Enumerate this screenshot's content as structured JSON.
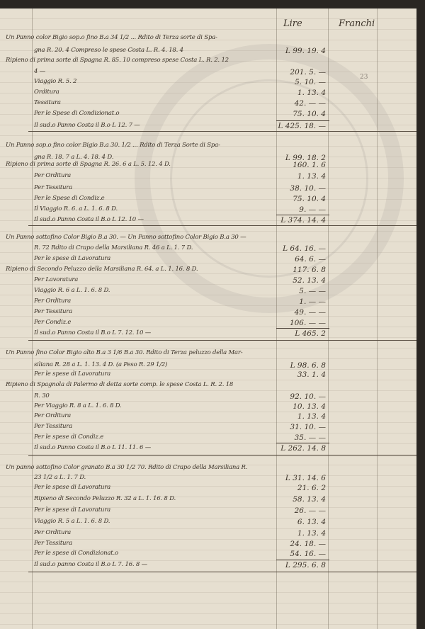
{
  "header": {
    "lire": "Lire",
    "franchi": "Franchi",
    "page_number": "23"
  },
  "sections": [
    {
      "lines": [
        {
          "text": "Un Panno color Bigio sop.o fino B.a 34 1/2 ... Rdito di Terza sorte di Spa-",
          "amount": ""
        },
        {
          "text": "gna R. 20. 4 Compreso le spese Costa L. R. 4. 18. 4",
          "amount": "L 99. 19. 4"
        },
        {
          "text": "Ripieno di prima sorte di Spagna R. 85. 10 compreso spese Costa L. R. 2. 12",
          "amount": ""
        },
        {
          "text": "4 —",
          "amount": "201. 5. —"
        },
        {
          "text": "Viaggio R. 5. 2",
          "amount": "5. 10. —"
        },
        {
          "text": "Orditura",
          "amount": "1. 13. 4"
        },
        {
          "text": "Tessitura",
          "amount": "42. — —"
        },
        {
          "text": "Per le Spese di Condizionat.o",
          "amount": "75. 10. 4"
        },
        {
          "text": "Il sud.o Panno Costa il B.o  L 12. 7 —",
          "amount": "L 425. 18. —"
        }
      ]
    },
    {
      "lines": [
        {
          "text": "Un Panno sop.o fino color Bigio B.a 30. 1/2 ... Rdito di Terza Sorte di Spa-",
          "amount": ""
        },
        {
          "text": "gna R. 18. 7 a L. 4. 18. 4 D.",
          "amount": "L 99. 18. 2"
        },
        {
          "text": "Ripieno di prima sorte di Spagna R. 26. 6 a L. 5. 12. 4 D.",
          "amount": "160. 1. 6"
        },
        {
          "text": "Per Orditura",
          "amount": "1. 13. 4"
        },
        {
          "text": "Per Tessitura",
          "amount": "38. 10. —"
        },
        {
          "text": "Per le Spese di Condiz.e",
          "amount": "75. 10. 4"
        },
        {
          "text": "Il Viaggio R. 6. a L. 1. 6. 8 D.",
          "amount": "9. — —"
        },
        {
          "text": "Il sud.o Panno Costa il B.o  L 12. 10 —",
          "amount": "L 374. 14. 4"
        }
      ]
    },
    {
      "lines": [
        {
          "text": "Un Panno sottofino Color Bigio B.a 30. — Un Panno sottofino Color Bigio B.a 30 —",
          "amount": ""
        },
        {
          "text": "R. 72 Rdito di Crapo della Marsiliana R. 46 a L. 1. 7 D.",
          "amount": "L 64. 16. —"
        },
        {
          "text": "Per le spese di Lavoratura",
          "amount": "64. 6. —"
        },
        {
          "text": "Ripieno di Secondo Peluzzo della Marsiliana R. 64. a L. 1. 16. 8 D.",
          "amount": "117. 6. 8"
        },
        {
          "text": "Per Lavoratura",
          "amount": "52. 13. 4"
        },
        {
          "text": "Viaggio R. 6 a L. 1. 6. 8 D.",
          "amount": "5. — —"
        },
        {
          "text": "Per Orditura",
          "amount": "1. — —"
        },
        {
          "text": "Per Tessitura",
          "amount": "49. — —"
        },
        {
          "text": "Per Condiz.e",
          "amount": "106. — —"
        },
        {
          "text": "Il sud.o Panno Costa il B.o  L 7. 12. 10 —",
          "amount": "L 465. 2"
        }
      ]
    },
    {
      "lines": [
        {
          "text": "Un Panno fino Color Bigio alto B.a 3 1/6 B.a 30. Rdito di Terza peluzzo della Mar-",
          "amount": ""
        },
        {
          "text": "siliana R. 28 a L. 1. 13. 4 D. (a Peso R. 29 1/2)",
          "amount": "L 98. 6. 8"
        },
        {
          "text": "Per le spese di Lavoratura",
          "amount": "33. 1. 4"
        },
        {
          "text": "Ripieno di Spagnola di Palermo di detta sorte comp. le spese Costa L. R. 2. 18",
          "amount": ""
        },
        {
          "text": "R. 30",
          "amount": "92. 10. —"
        },
        {
          "text": "Per Viaggio R. 8 a L. 1. 6. 8 D.",
          "amount": "10. 13. 4"
        },
        {
          "text": "Per Orditura",
          "amount": "1. 13. 4"
        },
        {
          "text": "Per Tessitura",
          "amount": "31. 10. —"
        },
        {
          "text": "Per le spese di Condiz.e",
          "amount": "35. — —"
        },
        {
          "text": "Il sud.o Panno Costa il B.o  L 11. 11. 6 —",
          "amount": "L 262. 14. 8"
        }
      ]
    },
    {
      "lines": [
        {
          "text": "Un panno sottofino Color granato B.a 30 1/2 70. Rdito di Crapo della Marsiliana R.",
          "amount": ""
        },
        {
          "text": "23 1/2 a L. 1. 7 D.",
          "amount": "L 31. 14. 6"
        },
        {
          "text": "Per le spese di Lavoratura",
          "amount": "21. 6. 2"
        },
        {
          "text": "Ripieno di Secondo Peluzzo R. 32 a L. 1. 16. 8 D.",
          "amount": "58. 13. 4"
        },
        {
          "text": "Per le spese di Lavoratura",
          "amount": "26. — —"
        },
        {
          "text": "Viaggio R. 5 a L. 1. 6. 8 D.",
          "amount": "6. 13. 4"
        },
        {
          "text": "Per Orditura",
          "amount": "1. 13. 4"
        },
        {
          "text": "Per Tessitura",
          "amount": "24. 18. —"
        },
        {
          "text": "Per le spese di Condizionat.o",
          "amount": "54. 16. —"
        },
        {
          "text": "Il sud.o panno Costa il B.o  L 7. 16. 8 —",
          "amount": "L 295. 6. 8"
        }
      ]
    }
  ]
}
